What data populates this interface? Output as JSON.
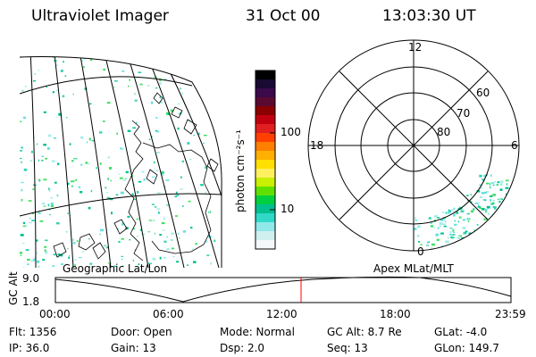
{
  "header": {
    "instrument": "Ultraviolet Imager",
    "date": "31 Oct 00",
    "time": "13:03:30 UT"
  },
  "colorbar": {
    "unit_label": "photon cm⁻²s⁻¹",
    "ticks": [
      "100",
      "10"
    ],
    "scale": "log",
    "colors": [
      "#000000",
      "#1a0a33",
      "#3a0a4a",
      "#5a0a30",
      "#8b0000",
      "#c00010",
      "#e02020",
      "#ff4000",
      "#ff8000",
      "#ffb000",
      "#ffe000",
      "#fff060",
      "#c8f000",
      "#60e000",
      "#00d040",
      "#00c090",
      "#30d8c8",
      "#90e8e8",
      "#d0f0f0",
      "#f4f8fa"
    ]
  },
  "geo_map": {
    "label": "Geographic Lat/Lon"
  },
  "polar_map": {
    "label": "Apex  MLat/MLT",
    "mlt_labels": [
      "12",
      "18",
      "6",
      "0"
    ],
    "mlat_labels": [
      "60",
      "70",
      "80"
    ]
  },
  "altitude_plot": {
    "ylabel": "GC Alt",
    "yticks": [
      "9.0",
      "1.8"
    ],
    "xticks": [
      "00:00",
      "06:00",
      "12:00",
      "18:00",
      "23:59"
    ]
  },
  "status": {
    "row1": {
      "flt": "Flt: 1356",
      "door": "Door:  Open",
      "mode": "Mode:  Normal",
      "gcalt": "GC Alt:  8.7 Re",
      "glat": "GLat:   -4.0"
    },
    "row2": {
      "ip": "IP:  36.0",
      "gain": "Gain:  13",
      "dsp": "Dsp:      2.0",
      "seq": "Seq:  13",
      "glon": "GLon:  149.7"
    }
  },
  "colors": {
    "marker": "#ff0000",
    "speckle": [
      "#30d0b0",
      "#60e0e0",
      "#a0ece8",
      "#00c090",
      "#40e060"
    ]
  }
}
